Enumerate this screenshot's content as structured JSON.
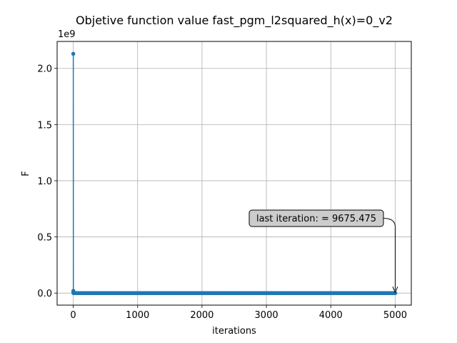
{
  "chart_data": {
    "type": "line",
    "title": "Objetive function value fast_pgm_l2squared_h(x)=0_v2",
    "xlabel": "iterations",
    "ylabel": "F",
    "y_offset_label": "1e9",
    "xlim": [
      -250,
      5250
    ],
    "ylim": [
      -0.107,
      2.24
    ],
    "x_ticks": [
      0,
      1000,
      2000,
      3000,
      4000,
      5000
    ],
    "y_ticks": [
      0.0,
      0.5,
      1.0,
      1.5,
      2.0
    ],
    "y_tick_labels": [
      "0.0",
      "0.5",
      "1.0",
      "1.5",
      "2.0"
    ],
    "grid": true,
    "color": "#1f77b4",
    "marker": "circle",
    "series": [
      {
        "head_points": [
          [
            1,
            2.13
          ],
          [
            2,
            0.02
          ],
          [
            3,
            0.006
          ],
          [
            4,
            0.002
          ],
          [
            5,
            0.001
          ],
          [
            6,
            0.0005
          ]
        ],
        "tail": {
          "x_start": 7,
          "x_end": 5000,
          "step": 20,
          "y": 9.68e-06
        }
      }
    ],
    "annotation": {
      "text": "last iteration: = 9675.475",
      "x": 5000,
      "y": 9.68e-06
    }
  }
}
